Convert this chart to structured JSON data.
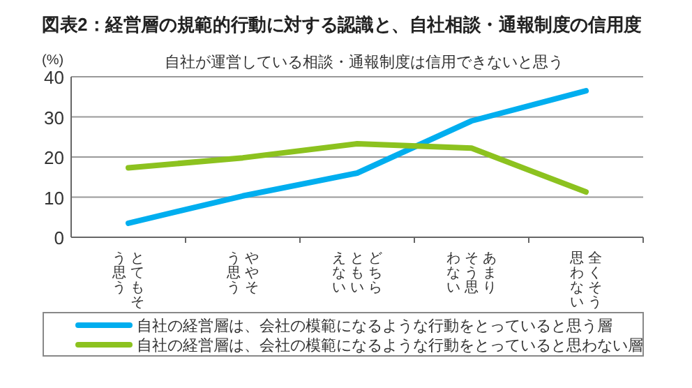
{
  "chart_data": {
    "type": "line",
    "title": "図表2：経営層の規範的行動に対する認識と、自社相談・通報制度の信用度",
    "subtitle": "自社が運営している相談・通報制度は信用できないと思う",
    "ylabel": "(%)",
    "categories": [
      "とてもそう思う",
      "ややそう思う",
      "どちらともいえない",
      "あまりそう思わない",
      "全くそう思わない"
    ],
    "series": [
      {
        "name": "自社の経営層は、会社の模範になるような行動をとっていると思う層",
        "color": "#00aeef",
        "values": [
          3.5,
          10.3,
          16,
          29,
          36.5
        ]
      },
      {
        "name": "自社の経営層は、会社の模範になるような行動をとっていると思わない層",
        "color": "#8cc21f",
        "values": [
          17.3,
          19.8,
          23.3,
          22.2,
          11.3
        ]
      }
    ],
    "ylim": [
      0,
      40
    ],
    "yticks": [
      0,
      10,
      20,
      30,
      40
    ],
    "grid": "y",
    "legend": "bottom",
    "marker": "none",
    "line_style": "solid"
  }
}
